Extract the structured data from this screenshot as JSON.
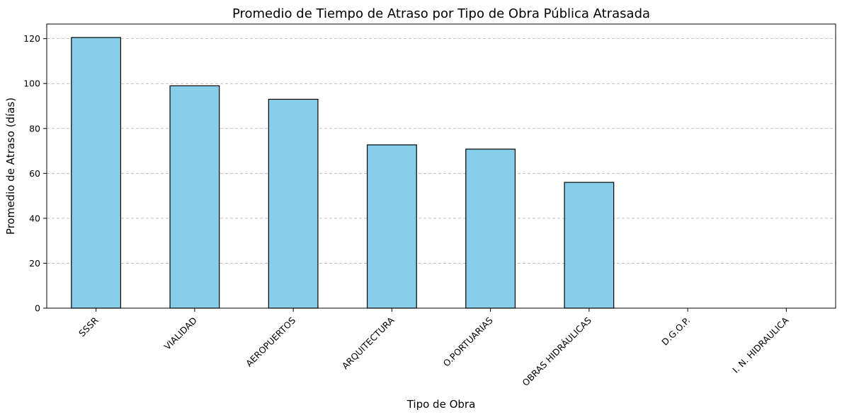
{
  "chart_data": {
    "type": "bar",
    "title": "Promedio de Tiempo de Atraso por Tipo de Obra Pública Atrasada",
    "xlabel": "Tipo de Obra",
    "ylabel": "Promedio de Atraso (días)",
    "categories": [
      "SSSR",
      "VIALIDAD",
      "AEROPUERTOS",
      "ARQUITECTURA",
      "O.PORTUARIAS",
      "OBRAS HIDRÁULICAS",
      "D.G.O.P.",
      "I. N. HIDRAULICA"
    ],
    "values": [
      120.5,
      99,
      93,
      72.7,
      70.8,
      56,
      0,
      0
    ],
    "ylim": [
      0,
      126.5
    ],
    "yticks": [
      0,
      20,
      40,
      60,
      80,
      100,
      120
    ],
    "grid": "y-dashed",
    "colors": {
      "bar": "#87ceeb",
      "edge": "#000000",
      "grid": "#b0b0b0"
    }
  }
}
